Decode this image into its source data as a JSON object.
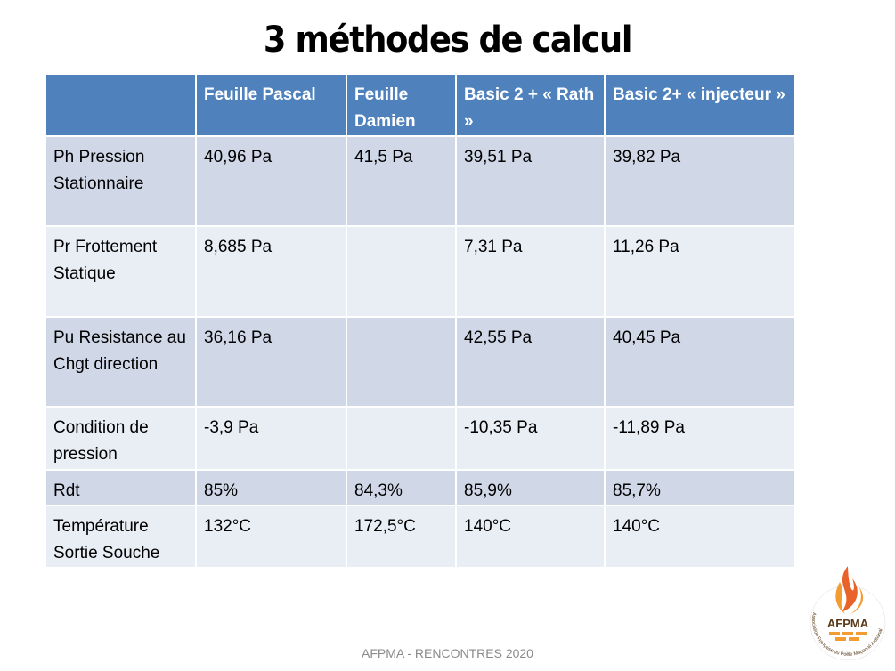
{
  "title": "3 méthodes de calcul",
  "table": {
    "headers": [
      "",
      "Feuille Pascal",
      "Feuille Damien",
      "Basic 2 + « Rath »",
      "Basic 2+ « injecteur »"
    ],
    "rows": [
      [
        "Ph Pression Stationnaire",
        "40,96 Pa",
        "41,5  Pa",
        "39,51 Pa",
        "39,82 Pa"
      ],
      [
        "Pr Frottement Statique",
        "8,685 Pa",
        "",
        "7,31 Pa",
        "11,26 Pa"
      ],
      [
        "Pu Resistance au Chgt direction",
        "36,16 Pa",
        "",
        "42,55 Pa",
        "40,45 Pa"
      ],
      [
        "Condition de pression",
        "-3,9 Pa",
        "",
        "-10,35 Pa",
        "-11,89 Pa"
      ],
      [
        "Rdt",
        "85%",
        "84,3%",
        "85,9%",
        "85,7%"
      ],
      [
        "Température Sortie Souche",
        "132°C",
        "172,5°C",
        "140°C",
        "140°C"
      ]
    ]
  },
  "footer": "AFPMA - RENCONTRES 2020",
  "logo": {
    "text": "AFPMA",
    "ring_text": "Association Française du Poêle Maçonné Artisanal"
  },
  "colors": {
    "header": "#4f81bd",
    "row_odd": "#d0d8e8",
    "row_even": "#e9edf4",
    "logo_orange": "#f39c33"
  }
}
